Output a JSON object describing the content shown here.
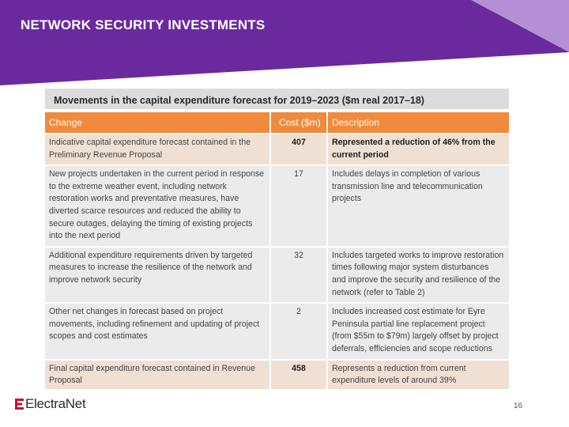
{
  "slide": {
    "title": "NETWORK SECURITY INVESTMENTS",
    "page_number": "16",
    "logo_text": "ElectraNet"
  },
  "colors": {
    "banner_purple": "#6a2a9e",
    "banner_accent": "#b48fd6",
    "header_orange": "#f08a3c",
    "highlight_row": "#f0e0d4",
    "row_grey": "#ebebeb",
    "logo_red": "#c8102e"
  },
  "table": {
    "caption": "Movements in the capital expenditure forecast for 2019–2023 ($m real 2017–18)",
    "headers": [
      "Change",
      "Cost ($m)",
      "Description"
    ],
    "rows": [
      {
        "change": "Indicative capital expenditure forecast contained in the Preliminary Revenue Proposal",
        "cost": "407",
        "description": "Represented a reduction of 46% from the current period"
      },
      {
        "change": "New projects undertaken in the current period in response to the extreme weather event, including network restoration works and preventative measures, have diverted scarce resources and reduced the ability to secure outages, delaying the timing of existing projects into the next period",
        "cost": "17",
        "description": "Includes delays in completion of various transmission line and telecommunication projects"
      },
      {
        "change": "Additional expenditure requirements driven by targeted measures to increase the resilience of the network and improve network security",
        "cost": "32",
        "description": "Includes targeted works to improve restoration times following major system disturbances and improve the security and resilience of the network (refer to Table 2)"
      },
      {
        "change": "Other net changes in forecast based on project movements, including refinement and updating of project scopes and cost estimates",
        "cost": "2",
        "description": "Includes increased cost estimate for Eyre Peninsula partial line replacement project (from $55m to $79m) largely offset by project deferrals, efficiencies and scope reductions"
      },
      {
        "change": "Final capital expenditure forecast contained in Revenue Proposal",
        "cost": "458",
        "description": "Represents a reduction from current expenditure levels of around 39%"
      }
    ]
  }
}
